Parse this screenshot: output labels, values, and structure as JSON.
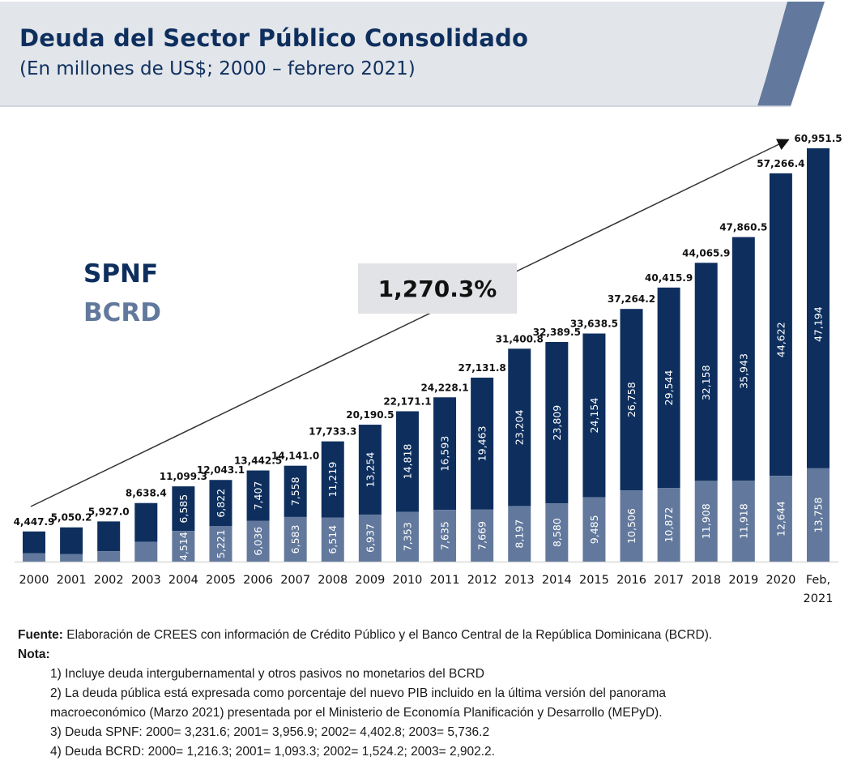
{
  "header": {
    "title": "Deuda del Sector Público Consolidado",
    "subtitle": "(En millones de US$; 2000 – febrero 2021)"
  },
  "legend": {
    "spnf": "SPNF",
    "bcrd": "BCRD"
  },
  "growth_label": "1,270.3%",
  "colors": {
    "spnf": "#0e2f5e",
    "bcrd": "#62799d",
    "header_bg": "#e2e5e9",
    "header_accent": "#62799d"
  },
  "chart_data": {
    "type": "bar",
    "stacked": true,
    "title": "Deuda del Sector Público Consolidado",
    "subtitle": "(En millones de US$; 2000 – febrero 2021)",
    "xlabel": "",
    "ylabel": "",
    "ylim": [
      0,
      61000
    ],
    "grid": false,
    "legend_position": "left",
    "categories": [
      "2000",
      "2001",
      "2002",
      "2003",
      "2004",
      "2005",
      "2006",
      "2007",
      "2008",
      "2009",
      "2010",
      "2011",
      "2012",
      "2013",
      "2014",
      "2015",
      "2016",
      "2017",
      "2018",
      "2019",
      "2020",
      "Feb, 2021"
    ],
    "series": [
      {
        "name": "BCRD",
        "values": [
          1216.3,
          1093.3,
          1524.2,
          2902.2,
          4514,
          5221,
          6036,
          6583,
          6514,
          6937,
          7353,
          7635,
          7669,
          8197,
          8580,
          9485,
          10506,
          10872,
          11908,
          11918,
          12644,
          13758
        ],
        "labels": [
          "",
          "",
          "",
          "",
          "4,514",
          "5,221",
          "6,036",
          "6,583",
          "6,514",
          "6,937",
          "7,353",
          "7,635",
          "7,669",
          "8,197",
          "8,580",
          "9,485",
          "10,506",
          "10,872",
          "11,908",
          "11,918",
          "12,644",
          "13,758"
        ]
      },
      {
        "name": "SPNF",
        "values": [
          3231.6,
          3956.9,
          4402.8,
          5736.2,
          6585,
          6822,
          7407,
          7558,
          11219,
          13254,
          14818,
          16593,
          19463,
          23204,
          23809,
          24154,
          26758,
          29544,
          32158,
          35943,
          44622,
          47194
        ],
        "labels": [
          "",
          "",
          "",
          "",
          "6,585",
          "6,822",
          "7,407",
          "7,558",
          "11,219",
          "13,254",
          "14,818",
          "16,593",
          "19,463",
          "23,204",
          "23,809",
          "24,154",
          "26,758",
          "29,544",
          "32,158",
          "35,943",
          "44,622",
          "47,194"
        ]
      }
    ],
    "totals": [
      4447.9,
      5050.2,
      5927.0,
      8638.4,
      11099.3,
      12043.1,
      13442.5,
      14141.0,
      17733.3,
      20190.5,
      22171.1,
      24228.1,
      27131.8,
      31400.8,
      32389.5,
      33638.5,
      37264.2,
      40415.9,
      44065.9,
      47860.5,
      57266.4,
      60951.5
    ],
    "total_labels": [
      "4,447.9",
      "5,050.2",
      "5,927.0",
      "8,638.4",
      "11,099.3",
      "12,043.1",
      "13,442.5",
      "14,141.0",
      "17,733.3",
      "20,190.5",
      "22,171.1",
      "24,228.1",
      "27,131.8",
      "31,400.8",
      "32,389.5",
      "33,638.5",
      "37,264.2",
      "40,415.9",
      "44,065.9",
      "47,860.5",
      "57,266.4",
      "60,951.5"
    ],
    "annotations": [
      {
        "type": "trend-arrow",
        "from": "2000",
        "to": "Feb, 2021",
        "label": "1,270.3%"
      }
    ]
  },
  "notes": {
    "source_label": "Fuente:",
    "source_text": " Elaboración de CREES con información de Crédito Público y el Banco Central de la República Dominicana (BCRD).",
    "note_label": "Nota:",
    "items": [
      "1) Incluye deuda intergubernamental y otros pasivos no monetarios del BCRD",
      "2) La deuda pública está expresada como porcentaje del nuevo PIB incluido en la última versión del panorama",
      "macroeconómico (Marzo 2021)  presentada por el Ministerio de Economía Planificación y Desarrollo (MEPyD).",
      "3) Deuda SPNF: 2000= 3,231.6; 2001= 3,956.9; 2002= 4,402.8; 2003= 5,736.2",
      "4) Deuda BCRD: 2000= 1,216.3; 2001= 1,093.3; 2002= 1,524.2; 2003= 2,902.2."
    ]
  }
}
